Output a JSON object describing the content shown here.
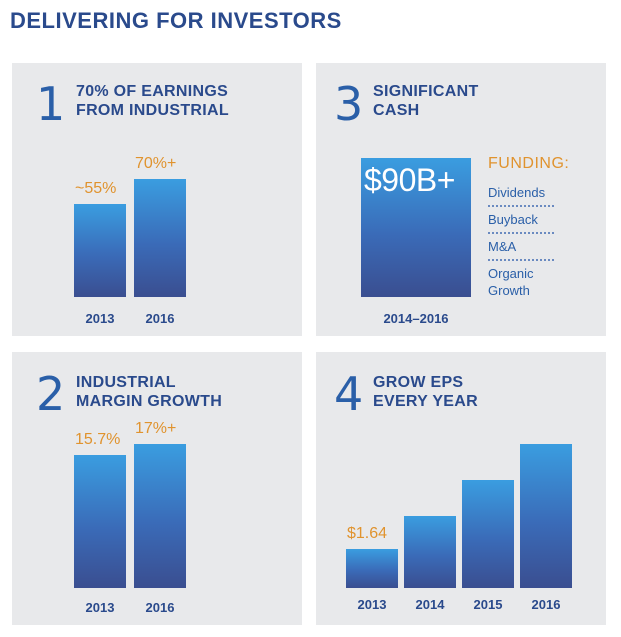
{
  "page_title": "DELIVERING FOR INVESTORS",
  "chart_data": [
    {
      "type": "bar",
      "panel_number": "1",
      "title": "70% OF EARNINGS FROM INDUSTRIAL",
      "categories": [
        "2013",
        "2016"
      ],
      "values": [
        55,
        70
      ],
      "value_labels": [
        "~55%",
        "70%+"
      ],
      "ylim": [
        0,
        70
      ]
    },
    {
      "type": "bar",
      "panel_number": "3",
      "title": "SIGNIFICANT CASH",
      "categories": [
        "2014–2016"
      ],
      "values": [
        90
      ],
      "value_labels": [
        "$90B+"
      ],
      "funding": {
        "title": "FUNDING:",
        "items": [
          "Dividends",
          "Buyback",
          "M&A",
          "Organic Growth"
        ]
      }
    },
    {
      "type": "bar",
      "panel_number": "2",
      "title": "INDUSTRIAL MARGIN GROWTH",
      "categories": [
        "2013",
        "2016"
      ],
      "values": [
        15.7,
        17
      ],
      "value_labels": [
        "15.7%",
        "17%+"
      ],
      "ylim": [
        0,
        17
      ]
    },
    {
      "type": "bar",
      "panel_number": "4",
      "title": "GROW EPS EVERY YEAR",
      "categories": [
        "2013",
        "2014",
        "2015",
        "2016"
      ],
      "values": [
        1.64,
        3.0,
        4.5,
        6.0
      ],
      "value_labels": [
        "$1.64",
        "",
        "",
        ""
      ],
      "ylim": [
        0,
        6.0
      ]
    }
  ],
  "colors": {
    "panel_bg": "#e8e9eb",
    "title": "#2a4a8c",
    "accent_orange": "#e0932e",
    "bar_top": "#3a9de0",
    "bar_bottom": "#3a4e90"
  }
}
